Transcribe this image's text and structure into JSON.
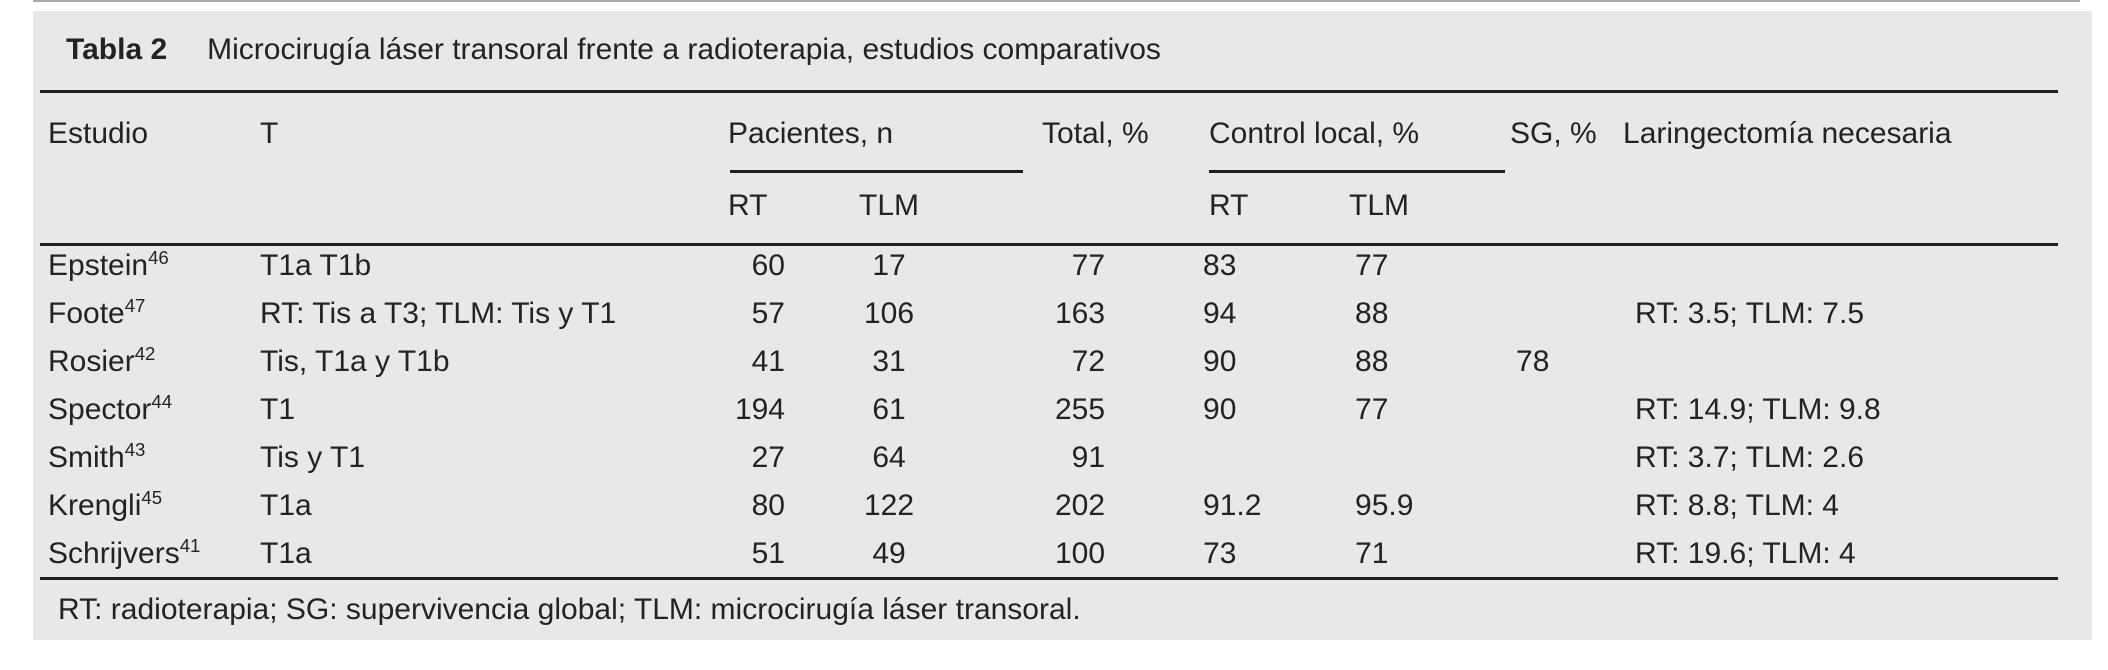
{
  "title": {
    "label": "Tabla 2",
    "text": "Microcirugía láser transoral frente a radioterapia, estudios comparativos"
  },
  "header": {
    "estudio": "Estudio",
    "t": "T",
    "pacientes": "Pacientes, n",
    "total": "Total, %",
    "control_local": "Control local, %",
    "sg": "SG, %",
    "laringectomia": "Laringectomía necesaria",
    "sub_rt": "RT",
    "sub_tlm": "TLM"
  },
  "rows": [
    {
      "study": "Epstein",
      "ref": "46",
      "t": "T1a T1b",
      "pac_rt": "60",
      "pac_tlm": "17",
      "total": "77",
      "cl_rt": "83",
      "cl_tlm": "77",
      "sg": "",
      "laring": ""
    },
    {
      "study": "Foote",
      "ref": "47",
      "t": "RT: Tis a T3; TLM: Tis y T1",
      "pac_rt": "57",
      "pac_tlm": "106",
      "total": "163",
      "cl_rt": "94",
      "cl_tlm": "88",
      "sg": "",
      "laring": "RT: 3.5; TLM: 7.5"
    },
    {
      "study": "Rosier",
      "ref": "42",
      "t": "Tis, T1a y T1b",
      "pac_rt": "41",
      "pac_tlm": "31",
      "total": "72",
      "cl_rt": "90",
      "cl_tlm": "88",
      "sg": "78",
      "laring": ""
    },
    {
      "study": "Spector",
      "ref": "44",
      "t": "T1",
      "pac_rt": "194",
      "pac_tlm": "61",
      "total": "255",
      "cl_rt": "90",
      "cl_tlm": "77",
      "sg": "",
      "laring": "RT: 14.9; TLM: 9.8"
    },
    {
      "study": "Smith",
      "ref": "43",
      "t": "Tis y T1",
      "pac_rt": "27",
      "pac_tlm": "64",
      "total": "91",
      "cl_rt": "",
      "cl_tlm": "",
      "sg": "",
      "laring": "RT: 3.7; TLM: 2.6"
    },
    {
      "study": "Krengli",
      "ref": "45",
      "t": "T1a",
      "pac_rt": "80",
      "pac_tlm": "122",
      "total": "202",
      "cl_rt": "91.2",
      "cl_tlm": "95.9",
      "sg": "",
      "laring": "RT: 8.8; TLM: 4"
    },
    {
      "study": "Schrijvers",
      "ref": "41",
      "t": "T1a",
      "pac_rt": "51",
      "pac_tlm": "49",
      "total": "100",
      "cl_rt": "73",
      "cl_tlm": "71",
      "sg": "",
      "laring": "RT: 19.6; TLM: 4"
    }
  ],
  "footnote": "RT: radioterapia; SG: supervivencia global; TLM: microcirugía láser transoral.",
  "colors": {
    "card_bg": "#e7e8e9",
    "text": "#232323",
    "rule": "#1f1f1f"
  }
}
